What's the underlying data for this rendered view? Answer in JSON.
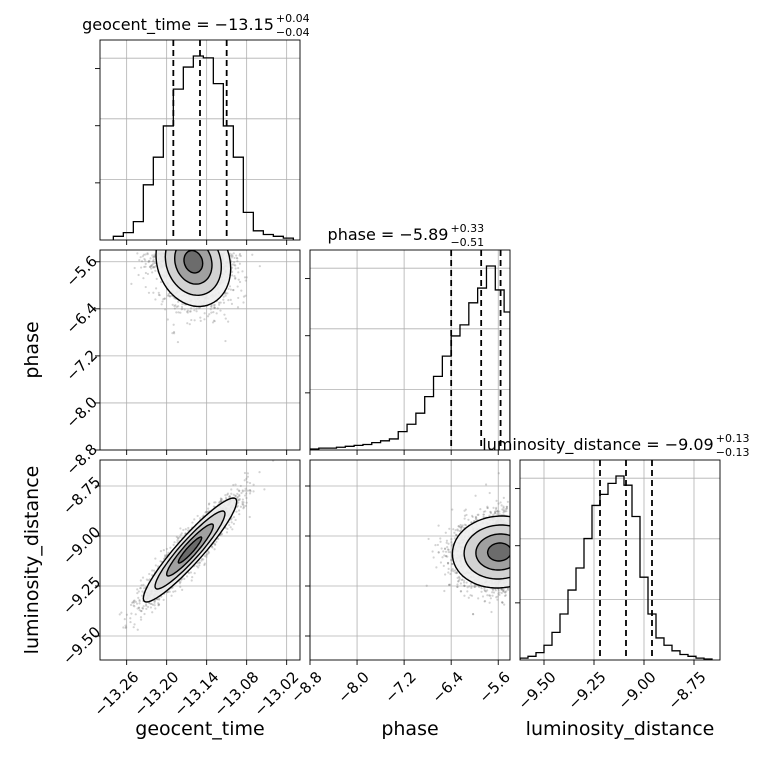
{
  "chart_data": {
    "type": "corner",
    "parameters": [
      "geocent_time",
      "phase",
      "luminosity_distance"
    ],
    "axis_labels": {
      "geocent_time": "geocent_time",
      "phase": "phase",
      "luminosity_distance": "luminosity_distance"
    },
    "ranges": {
      "geocent_time": [
        -13.3,
        -13.0
      ],
      "phase": [
        -8.8,
        -5.4
      ],
      "luminosity_distance": [
        -9.62,
        -8.62
      ]
    },
    "ticks": {
      "geocent_time": [
        {
          "v": -13.26,
          "label": "−13.26"
        },
        {
          "v": -13.2,
          "label": "−13.20"
        },
        {
          "v": -13.14,
          "label": "−13.14"
        },
        {
          "v": -13.08,
          "label": "−13.08"
        },
        {
          "v": -13.02,
          "label": "−13.02"
        }
      ],
      "phase": [
        {
          "v": -8.8,
          "label": "−8.8"
        },
        {
          "v": -8.0,
          "label": "−8.0"
        },
        {
          "v": -7.2,
          "label": "−7.2"
        },
        {
          "v": -6.4,
          "label": "−6.4"
        },
        {
          "v": -5.6,
          "label": "−5.6"
        }
      ],
      "luminosity_distance": [
        {
          "v": -9.5,
          "label": "−9.50"
        },
        {
          "v": -9.25,
          "label": "−9.25"
        },
        {
          "v": -9.0,
          "label": "−9.00"
        },
        {
          "v": -8.75,
          "label": "−8.75"
        }
      ]
    },
    "titles": {
      "geocent_time": {
        "main": "geocent_time = −13.15",
        "sup": "+0.04",
        "sub": "−0.04"
      },
      "phase": {
        "main": "phase = −5.89",
        "sup": "+0.33",
        "sub": "−0.51"
      },
      "luminosity_distance": {
        "main": "luminosity_distance = −9.09",
        "sup": "+0.13",
        "sub": "−0.13"
      }
    },
    "quantiles": {
      "geocent_time": [
        -13.19,
        -13.15,
        -13.11
      ],
      "phase": [
        -6.4,
        -5.89,
        -5.56
      ],
      "luminosity_distance": [
        -9.22,
        -9.09,
        -8.96
      ]
    },
    "histograms": {
      "geocent_time": {
        "edges": [
          -13.28,
          -13.265,
          -13.25,
          -13.235,
          -13.22,
          -13.205,
          -13.19,
          -13.175,
          -13.16,
          -13.145,
          -13.13,
          -13.115,
          -13.1,
          -13.085,
          -13.07,
          -13.055,
          -13.04,
          -13.025,
          -13.01
        ],
        "counts": [
          0.02,
          0.04,
          0.1,
          0.3,
          0.45,
          0.62,
          0.82,
          0.94,
          1.0,
          0.99,
          0.85,
          0.62,
          0.45,
          0.15,
          0.05,
          0.03,
          0.02,
          0.01
        ]
      },
      "phase": {
        "edges": [
          -8.8,
          -8.65,
          -8.5,
          -8.35,
          -8.2,
          -8.05,
          -7.9,
          -7.75,
          -7.6,
          -7.45,
          -7.3,
          -7.15,
          -7.0,
          -6.85,
          -6.7,
          -6.55,
          -6.4,
          -6.25,
          -6.1,
          -5.95,
          -5.8,
          -5.65,
          -5.5,
          -5.4
        ],
        "counts": [
          0.005,
          0.01,
          0.01,
          0.015,
          0.02,
          0.025,
          0.03,
          0.04,
          0.05,
          0.06,
          0.1,
          0.14,
          0.2,
          0.29,
          0.4,
          0.51,
          0.62,
          0.68,
          0.8,
          0.88,
          1.0,
          0.87,
          0.75
        ]
      },
      "luminosity_distance": {
        "edges": [
          -9.62,
          -9.58,
          -9.54,
          -9.5,
          -9.46,
          -9.42,
          -9.38,
          -9.34,
          -9.3,
          -9.26,
          -9.22,
          -9.18,
          -9.14,
          -9.1,
          -9.06,
          -9.02,
          -8.98,
          -8.94,
          -8.9,
          -8.86,
          -8.82,
          -8.78,
          -8.74,
          -8.7,
          -8.66
        ],
        "counts": [
          0.01,
          0.02,
          0.04,
          0.08,
          0.15,
          0.25,
          0.38,
          0.5,
          0.66,
          0.84,
          0.9,
          0.96,
          1.0,
          0.95,
          0.78,
          0.45,
          0.25,
          0.12,
          0.08,
          0.05,
          0.03,
          0.02,
          0.01,
          0.005
        ]
      }
    },
    "contour_levels_sigma": [
      0.5,
      1.0,
      1.5,
      2.0
    ],
    "density_2d": {
      "phase_vs_geocent_time": {
        "mean": [
          -13.16,
          -5.6
        ],
        "std": [
          0.028,
          0.38
        ],
        "rho": -0.15,
        "truncate_above": -5.45
      },
      "luminosity_distance_vs_geocent_time": {
        "mean": [
          -13.165,
          -9.07
        ],
        "std": [
          0.035,
          0.13
        ],
        "rho": 0.93
      },
      "luminosity_distance_vs_phase": {
        "mean": [
          -5.58,
          -9.08
        ],
        "std": [
          0.4,
          0.09
        ],
        "rho": 0.05,
        "truncate_above": -5.42
      }
    },
    "grid": true,
    "scatter_color": "#808080",
    "line_color": "#000000"
  }
}
